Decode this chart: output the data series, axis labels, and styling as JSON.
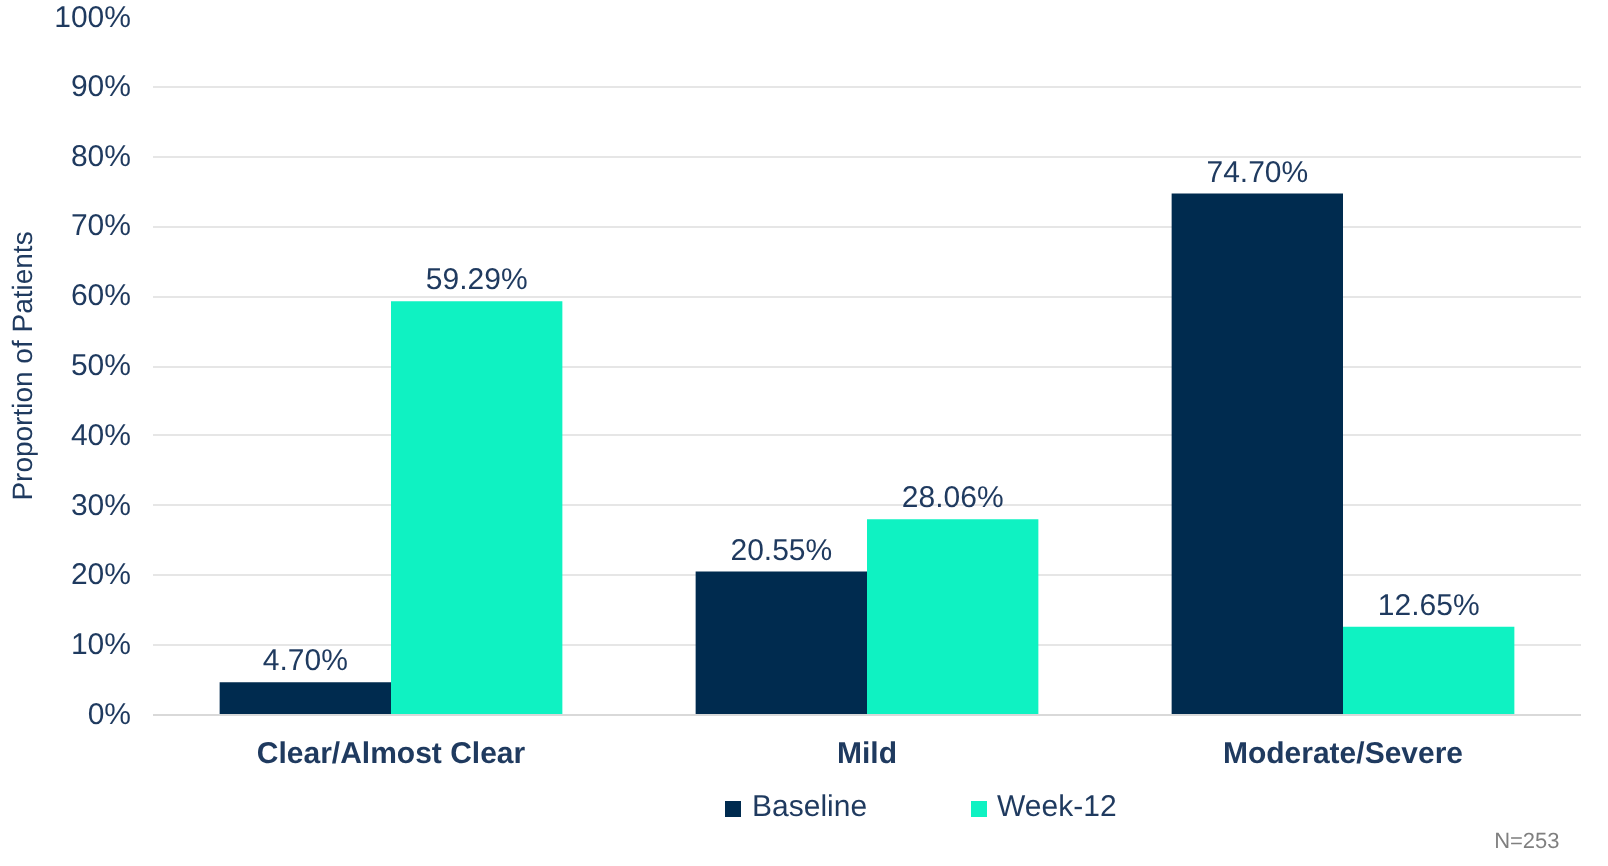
{
  "chart_data": {
    "type": "bar",
    "ylabel": "Proportion of Patients",
    "categories": [
      "Clear/Almost Clear",
      "Mild",
      "Moderate/Severe"
    ],
    "series": [
      {
        "name": "Baseline",
        "color": "#002b4f",
        "values": [
          4.7,
          20.55,
          74.7
        ],
        "value_labels": [
          "4.70%",
          "20.55%",
          "74.70%"
        ]
      },
      {
        "name": "Week-12",
        "color": "#0ff2c2",
        "values": [
          59.29,
          28.06,
          12.65
        ],
        "value_labels": [
          "59.29%",
          "28.06%",
          "12.65%"
        ]
      }
    ],
    "ylim": [
      0,
      100
    ],
    "yticks": [
      {
        "value": 0,
        "label": "0%"
      },
      {
        "value": 10,
        "label": "10%"
      },
      {
        "value": 20,
        "label": "20%"
      },
      {
        "value": 30,
        "label": "30%"
      },
      {
        "value": 40,
        "label": "40%"
      },
      {
        "value": 50,
        "label": "50%"
      },
      {
        "value": 60,
        "label": "60%"
      },
      {
        "value": 70,
        "label": "70%"
      },
      {
        "value": 80,
        "label": "80%"
      },
      {
        "value": 90,
        "label": "90%"
      },
      {
        "value": 100,
        "label": "100%"
      }
    ],
    "grid": "y",
    "legend": "bottom",
    "annotations": [
      "N=253"
    ]
  }
}
